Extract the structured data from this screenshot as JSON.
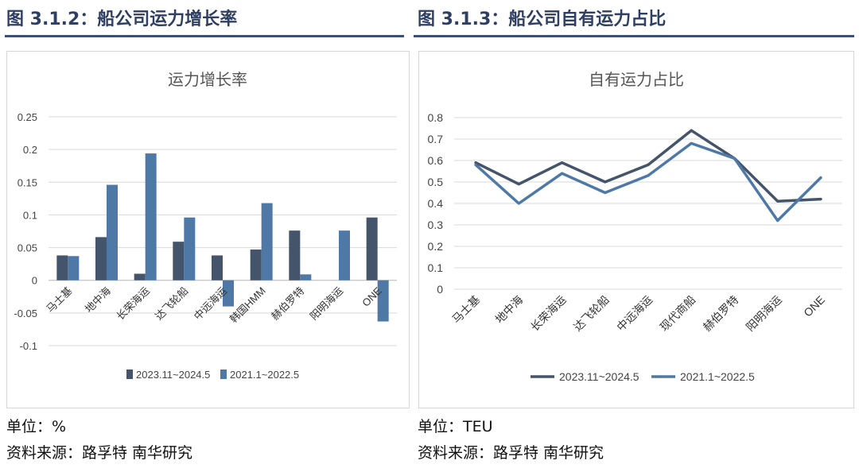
{
  "left": {
    "figure_title": "图 3.1.2：船公司运力增长率",
    "unit": "单位：%",
    "source": "资料来源：路孚特 南华研究"
  },
  "right": {
    "figure_title": "图 3.1.3：船公司自有运力占比",
    "unit": "单位：TEU",
    "source": "资料来源：路孚特 南华研究"
  },
  "colors": {
    "series_dark": "#44546a",
    "series_light": "#4e79a7",
    "title_rule": "#3b4f7a",
    "grid": "#d9d9d9",
    "axis": "#bfbfbf"
  },
  "chart_data": [
    {
      "type": "bar",
      "title": "运力增长率",
      "categories": [
        "马士基",
        "地中海",
        "长荣海运",
        "达飞轮船",
        "中远海运",
        "韩国HMM",
        "赫伯罗特",
        "阳明海运",
        "ONE"
      ],
      "series": [
        {
          "name": "2023.11~2024.5",
          "values": [
            0.038,
            0.066,
            0.01,
            0.059,
            0.038,
            0.047,
            0.076,
            0.0,
            0.096
          ]
        },
        {
          "name": "2021.1~2022.5",
          "values": [
            0.037,
            0.146,
            0.194,
            0.096,
            -0.04,
            0.118,
            0.009,
            0.076,
            -0.063
          ]
        }
      ],
      "ylim": [
        -0.1,
        0.25
      ],
      "yticks": [
        "-0.1",
        "-0.05",
        "0",
        "0.05",
        "0.1",
        "0.15",
        "0.2",
        "0.25"
      ],
      "xlabel": "",
      "ylabel": "",
      "grid": true,
      "legend": "bottom"
    },
    {
      "type": "line",
      "title": "自有运力占比",
      "categories": [
        "马士基",
        "地中海",
        "长荣海运",
        "达飞轮船",
        "中远海运",
        "现代商船",
        "赫伯罗特",
        "阳明海运",
        "ONE"
      ],
      "series": [
        {
          "name": "2023.11~2024.5",
          "values": [
            0.59,
            0.49,
            0.59,
            0.5,
            0.58,
            0.74,
            0.61,
            0.41,
            0.42
          ]
        },
        {
          "name": "2021.1~2022.5",
          "values": [
            0.58,
            0.4,
            0.54,
            0.45,
            0.53,
            0.68,
            0.61,
            0.32,
            0.52
          ]
        }
      ],
      "ylim": [
        0,
        0.8
      ],
      "yticks": [
        "0",
        "0.1",
        "0.2",
        "0.3",
        "0.4",
        "0.5",
        "0.6",
        "0.7",
        "0.8"
      ],
      "xlabel": "",
      "ylabel": "",
      "grid": true,
      "legend": "bottom"
    }
  ]
}
